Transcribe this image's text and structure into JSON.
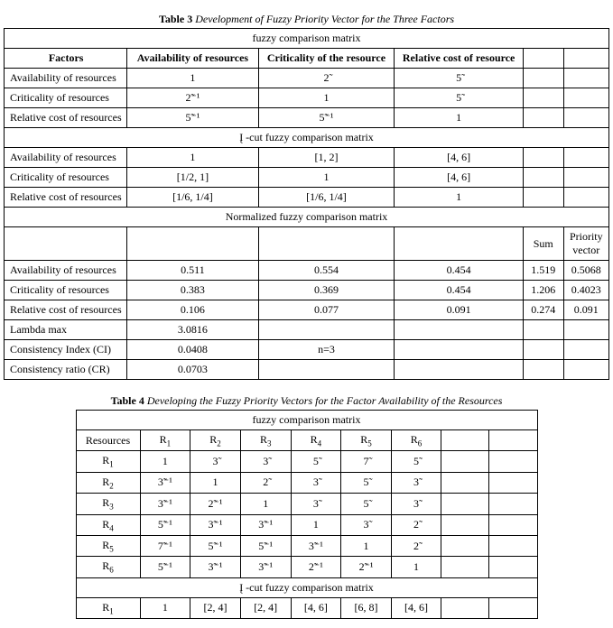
{
  "table3": {
    "caption_bold": "Table 3",
    "caption_italic": "Development of Fuzzy Priority Vector for the Three Factors",
    "header_span": "fuzzy comparison matrix",
    "col_headers": [
      "Factors",
      "Availability of  resources",
      "Criticality of the resource",
      "Relative cost of resource"
    ],
    "rows_a": [
      [
        "Availability of  resources",
        "1",
        "2̃",
        "5̃"
      ],
      [
        "Criticality of  resources",
        "2̃⁻¹",
        "1",
        "5̃"
      ],
      [
        "Relative cost of  resources",
        "5̃⁻¹",
        "5̃⁻¹",
        "1"
      ]
    ],
    "section_b": "Į -cut fuzzy comparison matrix",
    "rows_b": [
      [
        "Availability of  resources",
        "1",
        "[1, 2]",
        "[4, 6]"
      ],
      [
        "Criticality of  resources",
        "[1/2, 1]",
        "1",
        "[4, 6]"
      ],
      [
        "Relative cost of  resources",
        "[1/6, 1/4]",
        "[1/6, 1/4]",
        "1"
      ]
    ],
    "section_c": "Normalized fuzzy comparison matrix",
    "extra_headers": [
      "Sum",
      "Priority vector"
    ],
    "rows_c": [
      [
        "Availability of  resources",
        "0.511",
        "0.554",
        "0.454",
        "1.519",
        "0.5068"
      ],
      [
        "Criticality of  resources",
        "0.383",
        "0.369",
        "0.454",
        "1.206",
        "0.4023"
      ],
      [
        "Relative cost of  resources",
        "0.106",
        "0.077",
        "0.091",
        "0.274",
        "0.091"
      ]
    ],
    "rows_d": [
      [
        "Lambda max",
        "3.0816",
        "",
        "",
        "",
        ""
      ],
      [
        "Consistency Index (CI)",
        "0.0408",
        "n=3",
        "",
        "",
        ""
      ],
      [
        "Consistency ratio (CR)",
        "0.0703",
        "",
        "",
        "",
        ""
      ]
    ]
  },
  "table4": {
    "caption_bold": "Table 4",
    "caption_italic": "Developing the Fuzzy Priority Vectors for the Factor Availability of the Resources",
    "header_span": "fuzzy comparison matrix",
    "col0": "Resources",
    "res_labels": [
      "R",
      "R",
      "R",
      "R",
      "R",
      "R"
    ],
    "res_subs": [
      "1",
      "2",
      "3",
      "4",
      "5",
      "6"
    ],
    "rows_a": [
      [
        "R1",
        "1",
        "3̃",
        "3̃",
        "5̃",
        "7̃",
        "5̃"
      ],
      [
        "R2",
        "3̃⁻¹",
        "1",
        "2̃",
        "3̃",
        "5̃",
        "3̃"
      ],
      [
        "R3",
        "3̃⁻¹",
        "2̃⁻¹",
        "1",
        "3̃",
        "5̃",
        "3̃"
      ],
      [
        "R4",
        "5̃⁻¹",
        "3̃⁻¹",
        "3̃⁻¹",
        "1",
        "3̃",
        "2̃"
      ],
      [
        "R5",
        "7̃⁻¹",
        "5̃⁻¹",
        "5̃⁻¹",
        "3̃⁻¹",
        "1",
        "2̃"
      ],
      [
        "R6",
        "5̃⁻¹",
        "3̃⁻¹",
        "3̃⁻¹",
        "2̃⁻¹",
        "2̃⁻¹",
        "1"
      ]
    ],
    "section_b": "Į -cut fuzzy comparison matrix",
    "rows_b": [
      [
        "R1",
        "1",
        "[2, 4]",
        "[2, 4]",
        "[4, 6]",
        "[6, 8]",
        "[4, 6]"
      ]
    ]
  }
}
